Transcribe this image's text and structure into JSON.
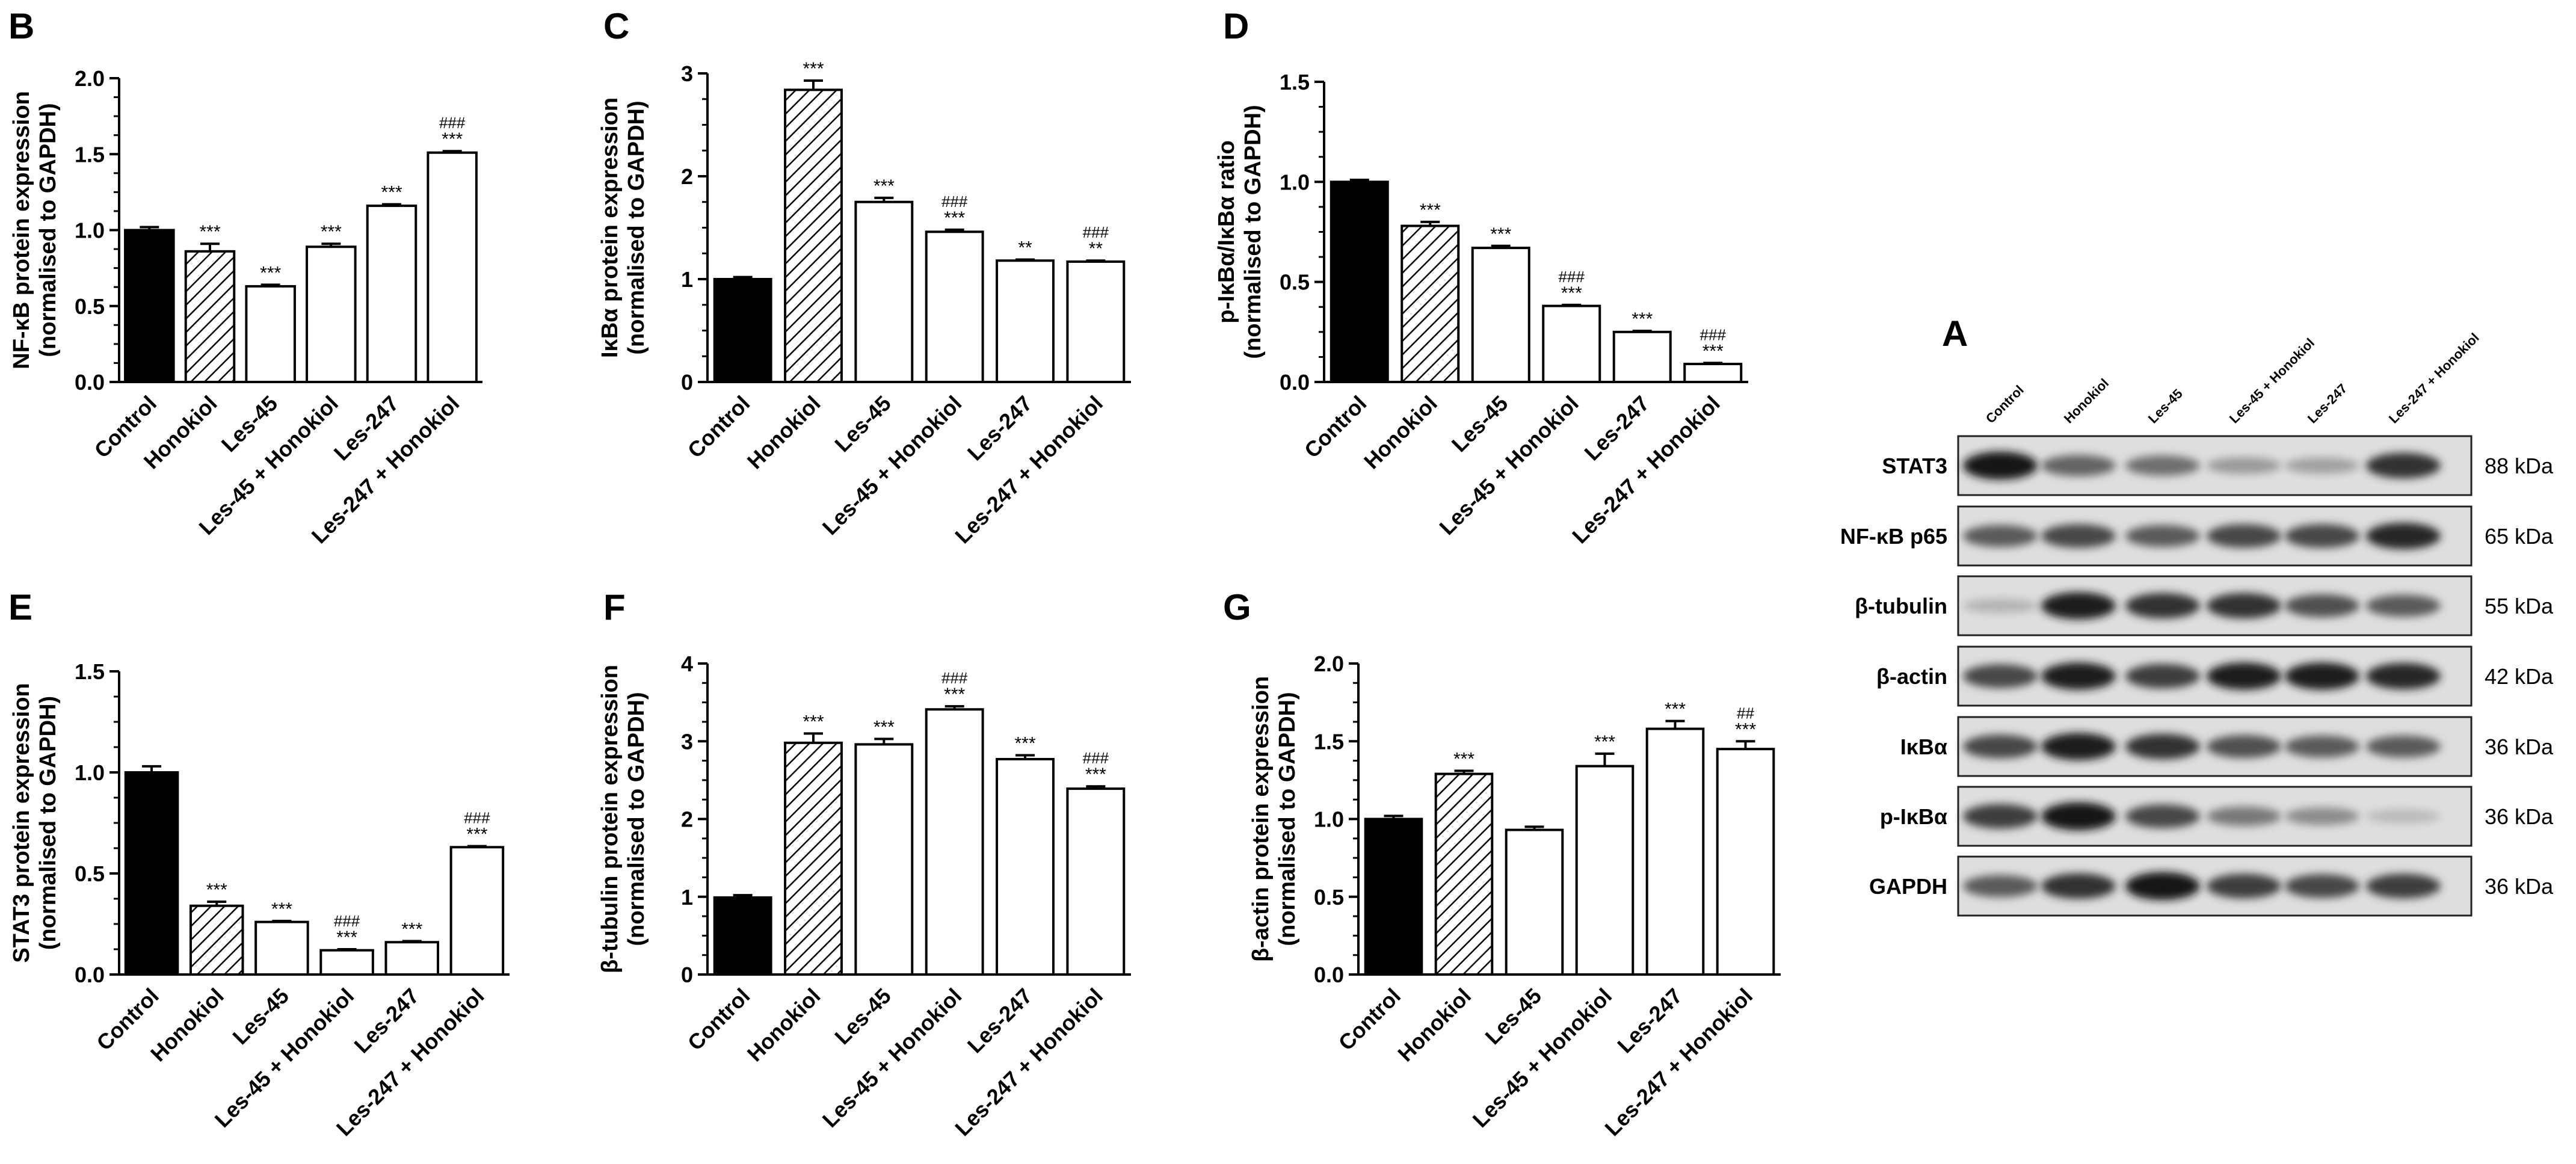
{
  "categories": [
    "Control",
    "Honokiol",
    "Les-45",
    "Les-45 + Honokiol",
    "Les-247",
    "Les-247 + Honokiol"
  ],
  "colors": {
    "control": "#000000",
    "honokiol_fill": "hatched",
    "treatment": "#ffffff",
    "axis": "#000000"
  },
  "chart_data": [
    {
      "panel": "B",
      "type": "bar",
      "ylabel": [
        "NF-κB protein expression",
        "(normalised to GAPDH)"
      ],
      "ylim": [
        0,
        2.0
      ],
      "ticks": [
        "0.0",
        "0.5",
        "1.0",
        "1.5",
        "2.0"
      ],
      "categories": [
        "Control",
        "Honokiol",
        "Les-45",
        "Les-45 + Honokiol",
        "Les-247",
        "Les-247 + Honokiol"
      ],
      "values": [
        1.0,
        0.86,
        0.63,
        0.89,
        1.16,
        1.51
      ],
      "errors": [
        0.02,
        0.05,
        0.01,
        0.02,
        0.01,
        0.01
      ],
      "stars": [
        "",
        "***",
        "***",
        "***",
        "***",
        "***"
      ],
      "hashes": [
        "",
        "",
        "",
        "",
        "",
        "###"
      ]
    },
    {
      "panel": "C",
      "type": "bar",
      "ylabel": [
        "IκBα protein expression",
        "(normalised to GAPDH)"
      ],
      "ylim": [
        0,
        3
      ],
      "ticks": [
        "0",
        "1",
        "2",
        "3"
      ],
      "categories": [
        "Control",
        "Honokiol",
        "Les-45",
        "Les-45 + Honokiol",
        "Les-247",
        "Les-247 + Honokiol"
      ],
      "values": [
        1.0,
        2.84,
        1.75,
        1.46,
        1.18,
        1.17
      ],
      "errors": [
        0.02,
        0.09,
        0.04,
        0.02,
        0.01,
        0.01
      ],
      "stars": [
        "",
        "***",
        "***",
        "***",
        "**",
        "**"
      ],
      "hashes": [
        "",
        "",
        "",
        "###",
        "",
        "###"
      ]
    },
    {
      "panel": "D",
      "type": "bar",
      "ylabel": [
        "p-IκBα/IκBα ratio",
        "(normalised to GAPDH)"
      ],
      "ylim": [
        0,
        1.5
      ],
      "ticks": [
        "0.0",
        "0.5",
        "1.0",
        "1.5"
      ],
      "categories": [
        "Control",
        "Honokiol",
        "Les-45",
        "Les-45 + Honokiol",
        "Les-247",
        "Les-247 + Honokiol"
      ],
      "values": [
        1.0,
        0.78,
        0.67,
        0.38,
        0.25,
        0.09
      ],
      "errors": [
        0.01,
        0.02,
        0.01,
        0.005,
        0.005,
        0.005
      ],
      "stars": [
        "",
        "***",
        "***",
        "***",
        "***",
        "***"
      ],
      "hashes": [
        "",
        "",
        "",
        "###",
        "",
        "###"
      ]
    },
    {
      "panel": "E",
      "type": "bar",
      "ylabel": [
        "STAT3 protein expression",
        "(normalised to GAPDH)"
      ],
      "ylim": [
        0,
        1.5
      ],
      "ticks": [
        "0.0",
        "0.5",
        "1.0",
        "1.5"
      ],
      "categories": [
        "Control",
        "Honokiol",
        "Les-45",
        "Les-45 + Honokiol",
        "Les-247",
        "Les-247 + Honokiol"
      ],
      "values": [
        1.0,
        0.34,
        0.26,
        0.12,
        0.16,
        0.63
      ],
      "errors": [
        0.03,
        0.02,
        0.005,
        0.005,
        0.005,
        0.005
      ],
      "stars": [
        "",
        "***",
        "***",
        "***",
        "***",
        "***"
      ],
      "hashes": [
        "",
        "",
        "",
        "###",
        "",
        "###"
      ]
    },
    {
      "panel": "F",
      "type": "bar",
      "ylabel": [
        "β-tubulin protein expression",
        "(normalised to GAPDH)"
      ],
      "ylim": [
        0,
        4
      ],
      "ticks": [
        "0",
        "1",
        "2",
        "3",
        "4"
      ],
      "categories": [
        "Control",
        "Honokiol",
        "Les-45",
        "Les-45 + Honokiol",
        "Les-247",
        "Les-247 + Honokiol"
      ],
      "values": [
        0.99,
        2.98,
        2.96,
        3.41,
        2.77,
        2.39
      ],
      "errors": [
        0.03,
        0.12,
        0.07,
        0.04,
        0.05,
        0.03
      ],
      "stars": [
        "",
        "***",
        "***",
        "***",
        "***",
        "***"
      ],
      "hashes": [
        "",
        "",
        "",
        "###",
        "",
        "###"
      ]
    },
    {
      "panel": "G",
      "type": "bar",
      "ylabel": [
        "β-actin protein expression",
        "(normalised to GAPDH)"
      ],
      "ylim": [
        0,
        2.0
      ],
      "ticks": [
        "0.0",
        "0.5",
        "1.0",
        "1.5",
        "2.0"
      ],
      "categories": [
        "Control",
        "Honokiol",
        "Les-45",
        "Les-45 + Honokiol",
        "Les-247",
        "Les-247 + Honokiol"
      ],
      "values": [
        1.0,
        1.29,
        0.93,
        1.34,
        1.58,
        1.45
      ],
      "errors": [
        0.02,
        0.02,
        0.02,
        0.08,
        0.05,
        0.05
      ],
      "stars": [
        "",
        "***",
        "",
        "***",
        "***",
        "***"
      ],
      "hashes": [
        "",
        "",
        "",
        "",
        "",
        "##"
      ]
    }
  ],
  "blot": {
    "panel": "A",
    "lanes": [
      "Control",
      "Honokiol",
      "Les-45",
      "Les-45 + Honokiol",
      "Les-247",
      "Les-247 + Honokiol"
    ],
    "rows": [
      {
        "protein": "STAT3",
        "kda": "88 kDa",
        "intensity": [
          0.95,
          0.55,
          0.5,
          0.28,
          0.25,
          0.8
        ]
      },
      {
        "protein": "NF-κB p65",
        "kda": "65 kDa",
        "intensity": [
          0.6,
          0.7,
          0.6,
          0.7,
          0.7,
          0.85
        ]
      },
      {
        "protein": "β-tubulin",
        "kda": "55 kDa",
        "intensity": [
          0.15,
          0.9,
          0.8,
          0.8,
          0.65,
          0.6
        ]
      },
      {
        "protein": "β-actin",
        "kda": "42 kDa",
        "intensity": [
          0.7,
          0.9,
          0.75,
          0.9,
          0.9,
          0.85
        ]
      },
      {
        "protein": "IκBα",
        "kda": "36 kDa",
        "intensity": [
          0.7,
          0.9,
          0.8,
          0.65,
          0.6,
          0.6
        ]
      },
      {
        "protein": "p-IκBα",
        "kda": "36 kDa",
        "intensity": [
          0.75,
          0.95,
          0.7,
          0.45,
          0.35,
          0.12
        ]
      },
      {
        "protein": "GAPDH",
        "kda": "36 kDa",
        "intensity": [
          0.6,
          0.8,
          0.95,
          0.75,
          0.7,
          0.75
        ]
      }
    ]
  }
}
